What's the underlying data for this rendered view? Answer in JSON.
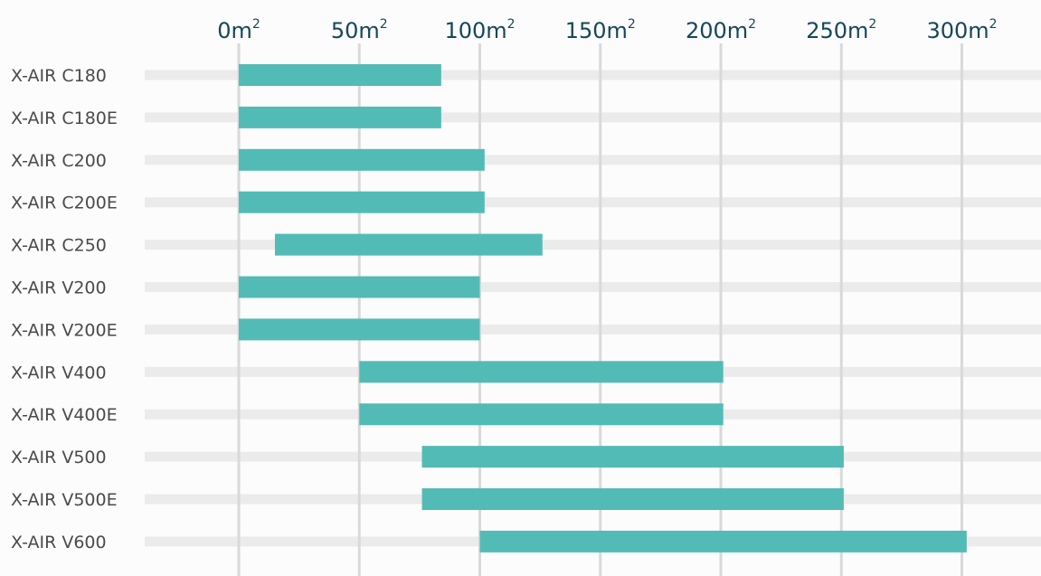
{
  "chart_data": {
    "type": "range-bar",
    "orientation": "horizontal",
    "title": "",
    "xlabel": "",
    "ylabel": "",
    "x_unit": "m",
    "x_unit_superscript": "2",
    "x_ticks": [
      0,
      50,
      100,
      150,
      200,
      250,
      300
    ],
    "xlim": [
      0,
      300
    ],
    "grid": "vertical",
    "legend": "none",
    "categories": [
      "X-AIR C180",
      "X-AIR C180E",
      "X-AIR C200",
      "X-AIR C200E",
      "X-AIR C250",
      "X-AIR V200",
      "X-AIR V200E",
      "X-AIR V400",
      "X-AIR V400E",
      "X-AIR V500",
      "X-AIR V500E",
      "X-AIR V600"
    ],
    "series": [
      {
        "ranges": [
          [
            0,
            84
          ],
          [
            0,
            84
          ],
          [
            0,
            102
          ],
          [
            0,
            102
          ],
          [
            15,
            126
          ],
          [
            0,
            100
          ],
          [
            0,
            100
          ],
          [
            50,
            201
          ],
          [
            50,
            201
          ],
          [
            76,
            251
          ],
          [
            76,
            251
          ],
          [
            100,
            302
          ]
        ]
      }
    ],
    "colors": {
      "bar": "#53BBB5",
      "track": "#EBEBEB",
      "grid": "#D9D9D9",
      "tick_text": "#15475A",
      "category_text": "#4A4A4A",
      "background": "#FCFCFC"
    }
  }
}
